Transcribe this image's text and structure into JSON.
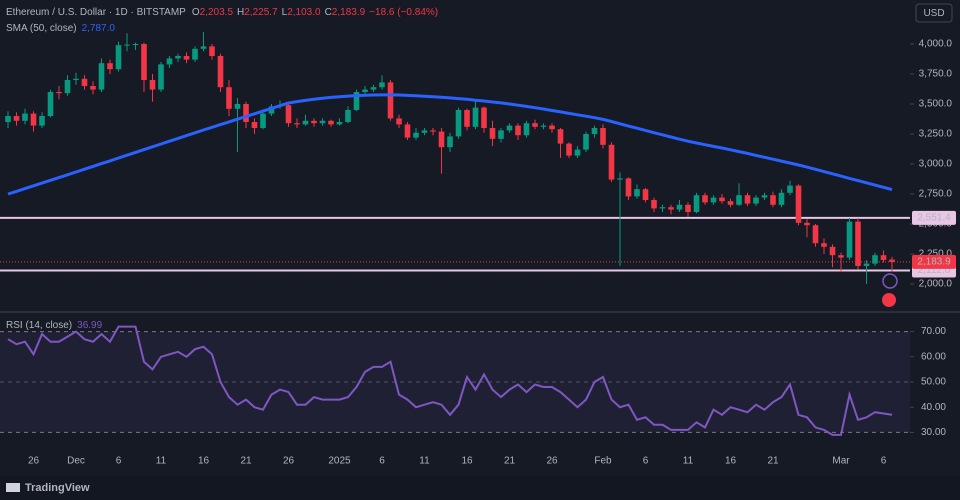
{
  "header": {
    "symbol": "Ethereum / U.S. Dollar · 1D · BITSTAMP",
    "open_label": "O",
    "open": "2,203.5",
    "high_label": "H",
    "high": "2,225.7",
    "low_label": "L",
    "low": "2,103.0",
    "close_label": "C",
    "close": "2,183.9",
    "change": "−18.6 (−0.84%)",
    "currency": "USD",
    "brand": "TradingView"
  },
  "chart_data": {
    "type": "candlestick",
    "up_color": "#089981",
    "down_color": "#f23645",
    "categories": [
      null,
      null,
      null,
      "26",
      null,
      null,
      null,
      null,
      "Dec",
      null,
      null,
      null,
      null,
      "6",
      null,
      null,
      null,
      null,
      "11",
      null,
      null,
      null,
      null,
      "16",
      null,
      null,
      null,
      null,
      "21",
      null,
      null,
      null,
      null,
      "26",
      null,
      null,
      null,
      null,
      null,
      "2025",
      null,
      null,
      null,
      null,
      "6",
      null,
      null,
      null,
      null,
      "11",
      null,
      null,
      null,
      null,
      "16",
      null,
      null,
      null,
      null,
      "21",
      null,
      null,
      null,
      null,
      "26",
      null,
      null,
      null,
      null,
      null,
      "Feb",
      null,
      null,
      null,
      null,
      "6",
      null,
      null,
      null,
      null,
      "11",
      null,
      null,
      null,
      null,
      "16",
      null,
      null,
      null,
      null,
      "21",
      null,
      null,
      null,
      null,
      null,
      null,
      null,
      "Mar",
      null,
      null,
      null,
      null,
      "6",
      null
    ],
    "ohlc": [
      [
        3350,
        3440,
        3300,
        3400
      ],
      [
        3400,
        3430,
        3320,
        3360
      ],
      [
        3360,
        3460,
        3330,
        3420
      ],
      [
        3420,
        3440,
        3270,
        3320
      ],
      [
        3320,
        3430,
        3300,
        3400
      ],
      [
        3400,
        3620,
        3390,
        3600
      ],
      [
        3600,
        3650,
        3540,
        3590
      ],
      [
        3590,
        3740,
        3570,
        3700
      ],
      [
        3700,
        3760,
        3660,
        3710
      ],
      [
        3710,
        3740,
        3620,
        3650
      ],
      [
        3650,
        3690,
        3580,
        3620
      ],
      [
        3620,
        3880,
        3600,
        3840
      ],
      [
        3840,
        3870,
        3750,
        3790
      ],
      [
        3790,
        4020,
        3770,
        3990
      ],
      [
        3990,
        4090,
        3940,
        3995
      ],
      [
        3995,
        4010,
        3950,
        4000
      ],
      [
        4000,
        4010,
        3600,
        3700
      ],
      [
        3700,
        3750,
        3520,
        3620
      ],
      [
        3620,
        3850,
        3600,
        3830
      ],
      [
        3830,
        3900,
        3800,
        3880
      ],
      [
        3880,
        3920,
        3850,
        3900
      ],
      [
        3900,
        3930,
        3840,
        3870
      ],
      [
        3870,
        3980,
        3850,
        3960
      ],
      [
        3960,
        4100,
        3940,
        3980
      ],
      [
        3980,
        4000,
        3870,
        3900
      ],
      [
        3900,
        3920,
        3600,
        3640
      ],
      [
        3640,
        3700,
        3400,
        3460
      ],
      [
        3460,
        3550,
        3100,
        3500
      ],
      [
        3500,
        3520,
        3300,
        3350
      ],
      [
        3350,
        3380,
        3250,
        3300
      ],
      [
        3300,
        3440,
        3290,
        3420
      ],
      [
        3420,
        3500,
        3400,
        3480
      ],
      [
        3480,
        3530,
        3460,
        3490
      ],
      [
        3490,
        3500,
        3310,
        3340
      ],
      [
        3340,
        3380,
        3300,
        3330
      ],
      [
        3330,
        3410,
        3320,
        3360
      ],
      [
        3360,
        3380,
        3310,
        3340
      ],
      [
        3340,
        3380,
        3320,
        3360
      ],
      [
        3360,
        3370,
        3310,
        3330
      ],
      [
        3330,
        3380,
        3320,
        3350
      ],
      [
        3350,
        3480,
        3340,
        3450
      ],
      [
        3450,
        3620,
        3440,
        3600
      ],
      [
        3600,
        3650,
        3580,
        3620
      ],
      [
        3620,
        3660,
        3600,
        3640
      ],
      [
        3640,
        3740,
        3620,
        3680
      ],
      [
        3680,
        3700,
        3360,
        3380
      ],
      [
        3380,
        3410,
        3300,
        3330
      ],
      [
        3330,
        3350,
        3200,
        3220
      ],
      [
        3220,
        3300,
        3200,
        3260
      ],
      [
        3260,
        3300,
        3240,
        3280
      ],
      [
        3280,
        3300,
        3240,
        3270
      ],
      [
        3270,
        3300,
        2920,
        3140
      ],
      [
        3140,
        3260,
        3100,
        3230
      ],
      [
        3230,
        3470,
        3210,
        3450
      ],
      [
        3450,
        3460,
        3280,
        3310
      ],
      [
        3310,
        3520,
        3290,
        3470
      ],
      [
        3470,
        3480,
        3260,
        3300
      ],
      [
        3300,
        3360,
        3150,
        3210
      ],
      [
        3210,
        3300,
        3180,
        3280
      ],
      [
        3280,
        3340,
        3260,
        3320
      ],
      [
        3320,
        3340,
        3200,
        3240
      ],
      [
        3240,
        3360,
        3220,
        3340
      ],
      [
        3340,
        3370,
        3290,
        3310
      ],
      [
        3310,
        3340,
        3290,
        3320
      ],
      [
        3320,
        3340,
        3260,
        3290
      ],
      [
        3290,
        3300,
        3050,
        3170
      ],
      [
        3170,
        3180,
        3050,
        3070
      ],
      [
        3070,
        3150,
        3050,
        3120
      ],
      [
        3120,
        3270,
        3100,
        3250
      ],
      [
        3250,
        3320,
        3220,
        3300
      ],
      [
        3300,
        3330,
        3130,
        3160
      ],
      [
        3160,
        3180,
        2850,
        2870
      ],
      [
        2870,
        2930,
        2150,
        2880
      ],
      [
        2880,
        2890,
        2700,
        2730
      ],
      [
        2730,
        2830,
        2710,
        2790
      ],
      [
        2790,
        2800,
        2680,
        2700
      ],
      [
        2700,
        2720,
        2600,
        2630
      ],
      [
        2630,
        2660,
        2600,
        2640
      ],
      [
        2640,
        2660,
        2580,
        2620
      ],
      [
        2620,
        2700,
        2600,
        2660
      ],
      [
        2660,
        2680,
        2560,
        2600
      ],
      [
        2600,
        2760,
        2590,
        2740
      ],
      [
        2740,
        2760,
        2660,
        2680
      ],
      [
        2680,
        2740,
        2660,
        2720
      ],
      [
        2720,
        2750,
        2670,
        2690
      ],
      [
        2690,
        2710,
        2640,
        2660
      ],
      [
        2660,
        2840,
        2650,
        2740
      ],
      [
        2740,
        2760,
        2650,
        2670
      ],
      [
        2670,
        2740,
        2650,
        2720
      ],
      [
        2720,
        2760,
        2700,
        2740
      ],
      [
        2740,
        2770,
        2640,
        2660
      ],
      [
        2660,
        2790,
        2640,
        2760
      ],
      [
        2760,
        2860,
        2740,
        2820
      ],
      [
        2820,
        2830,
        2490,
        2510
      ],
      [
        2510,
        2540,
        2390,
        2490
      ],
      [
        2490,
        2500,
        2310,
        2340
      ],
      [
        2340,
        2380,
        2250,
        2310
      ],
      [
        2310,
        2330,
        2140,
        2240
      ],
      [
        2240,
        2260,
        2100,
        2220
      ],
      [
        2220,
        2550,
        2200,
        2520
      ],
      [
        2520,
        2550,
        2120,
        2150
      ],
      [
        2150,
        2200,
        2000,
        2170
      ],
      [
        2170,
        2260,
        2150,
        2240
      ],
      [
        2240,
        2280,
        2180,
        2200
      ],
      [
        2203.5,
        2225.7,
        2103.0,
        2183.9
      ]
    ],
    "ylim": [
      1800,
      4350
    ],
    "yticks": [
      {
        "value": 2000,
        "label": "2,000.0"
      },
      {
        "value": 2250,
        "label": "2,250.0"
      },
      {
        "value": 2500,
        "label": "2,500.0"
      },
      {
        "value": 2750,
        "label": "2,750.0"
      },
      {
        "value": 3000,
        "label": "3,000.0"
      },
      {
        "value": 3250,
        "label": "3,250.0"
      },
      {
        "value": 3500,
        "label": "3,500.0"
      },
      {
        "value": 3750,
        "label": "3,750.0"
      },
      {
        "value": 4000,
        "label": "4,000.0"
      }
    ],
    "sma": {
      "name": "SMA (50, close)",
      "last_label": "2,787.0",
      "color": "#2962ff",
      "values": [
        2750,
        2772,
        2795,
        2818,
        2841,
        2864,
        2887,
        2910,
        2933,
        2957,
        2980,
        3003,
        3026,
        3050,
        3073,
        3097,
        3120,
        3143,
        3167,
        3190,
        3213,
        3237,
        3260,
        3283,
        3306,
        3328,
        3351,
        3373,
        3396,
        3418,
        3441,
        3463,
        3486,
        3508,
        3520,
        3530,
        3540,
        3548,
        3555,
        3561,
        3566,
        3570,
        3573,
        3575,
        3576,
        3576,
        3575,
        3572,
        3569,
        3565,
        3561,
        3556,
        3551,
        3545,
        3539,
        3532,
        3525,
        3517,
        3509,
        3500,
        3490,
        3480,
        3469,
        3458,
        3446,
        3434,
        3422,
        3410,
        3398,
        3386,
        3372,
        3354,
        3335,
        3316,
        3298,
        3280,
        3261,
        3243,
        3225,
        3207,
        3190,
        3175,
        3161,
        3147,
        3133,
        3118,
        3103,
        3088,
        3072,
        3056,
        3040,
        3024,
        3008,
        2992,
        2974,
        2956,
        2937,
        2918,
        2899,
        2880,
        2862,
        2843,
        2824,
        2806,
        2787
      ]
    },
    "levels": [
      {
        "value": 2551.4,
        "label": "2,551.4"
      },
      {
        "value": 2112.0,
        "label": "2,112.0"
      }
    ],
    "level_color": "#e8c6e6",
    "last_price": {
      "value": 2183.9,
      "label": "2,183.9"
    },
    "rsi": {
      "name": "RSI (14, close)",
      "last_label": "36.99",
      "color": "#7e57c2",
      "ylim": [
        25,
        75
      ],
      "yticks": [
        {
          "value": 30,
          "label": "30.00"
        },
        {
          "value": 40,
          "label": "40.00"
        },
        {
          "value": 50,
          "label": "50.00"
        },
        {
          "value": 60,
          "label": "60.00"
        },
        {
          "value": 70,
          "label": "70.00"
        }
      ],
      "band": [
        30,
        70
      ],
      "midline": 50,
      "values": [
        67,
        65,
        66,
        61,
        69,
        66,
        66,
        68,
        70,
        67,
        66,
        69,
        66,
        72,
        72,
        72,
        58,
        55,
        60,
        61,
        62,
        60,
        63,
        64,
        61,
        50,
        44,
        41,
        43,
        40,
        39,
        45,
        47,
        46,
        41,
        41,
        44,
        43,
        43,
        43,
        44,
        48,
        54,
        56,
        56,
        58,
        45,
        43,
        40,
        41,
        42,
        41,
        37,
        41,
        52,
        47,
        53,
        47,
        44,
        47,
        49,
        46,
        49,
        48,
        48,
        46,
        43,
        40,
        43,
        50,
        52,
        43,
        40,
        41,
        35,
        36,
        33,
        33,
        31,
        31,
        31,
        34,
        32,
        39,
        37,
        40,
        39,
        38,
        41,
        39,
        42,
        44,
        49,
        37,
        36,
        32,
        31,
        29,
        29,
        45,
        35,
        36,
        38,
        37.5,
        36.99
      ]
    }
  }
}
